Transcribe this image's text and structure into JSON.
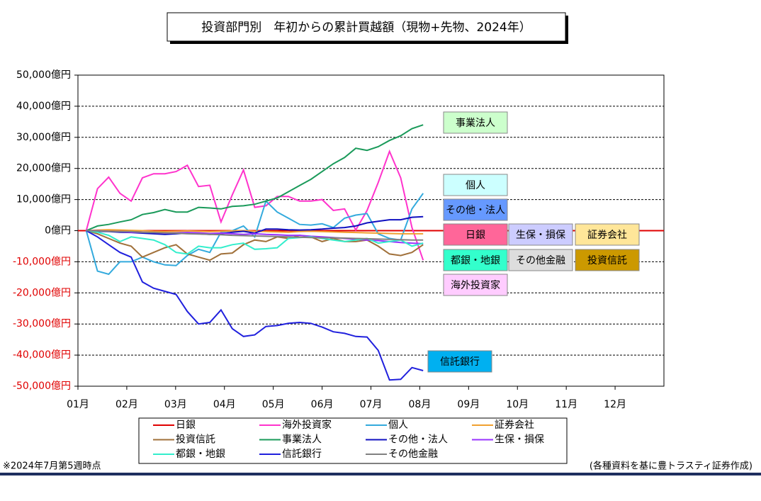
{
  "chart_data": {
    "type": "line",
    "title": "投資部門別　年初からの累計買越額（現物+先物、2024年）",
    "footnote": "※2024年7月第5週時点",
    "source": "(各種資料を基に豊トラスティ証券作成)",
    "x": [
      1.17,
      1.4,
      1.63,
      1.86,
      2.09,
      2.32,
      2.55,
      2.78,
      3.01,
      3.24,
      3.47,
      3.7,
      3.93,
      4.16,
      4.39,
      4.62,
      4.85,
      5.08,
      5.31,
      5.54,
      5.77,
      6,
      6.23,
      6.46,
      6.69,
      6.92,
      7.15,
      7.38,
      7.61,
      7.84,
      8.07
    ],
    "xlim": [
      1,
      13
    ],
    "xticks": [
      {
        "value": 1,
        "label": "01月"
      },
      {
        "value": 2,
        "label": "02月"
      },
      {
        "value": 3,
        "label": "03月"
      },
      {
        "value": 4,
        "label": "04月"
      },
      {
        "value": 5,
        "label": "05月"
      },
      {
        "value": 6,
        "label": "06月"
      },
      {
        "value": 7,
        "label": "07月"
      },
      {
        "value": 8,
        "label": "08月"
      },
      {
        "value": 9,
        "label": "09月"
      },
      {
        "value": 10,
        "label": "10月"
      },
      {
        "value": 11,
        "label": "11月"
      },
      {
        "value": 12,
        "label": "12月"
      }
    ],
    "ylim": [
      -50000,
      50000
    ],
    "yticks": [
      {
        "value": 50000,
        "label": "50,000億円"
      },
      {
        "value": 40000,
        "label": "40,000億円"
      },
      {
        "value": 30000,
        "label": "30,000億円"
      },
      {
        "value": 20000,
        "label": "20,000億円"
      },
      {
        "value": 10000,
        "label": "10,000億円"
      },
      {
        "value": 0,
        "label": "0億円"
      },
      {
        "value": -10000,
        "label": "-10,000億円"
      },
      {
        "value": -20000,
        "label": "-20,000億円"
      },
      {
        "value": -30000,
        "label": "-30,000億円"
      },
      {
        "value": -40000,
        "label": "-40,000億円"
      },
      {
        "value": -50000,
        "label": "-50,000億円"
      }
    ],
    "grid": true,
    "zero_line_color": "#e00000",
    "series": [
      {
        "name": "日銀",
        "color": "#e00000",
        "label_color": "#ff6699",
        "values": [
          0,
          0,
          0,
          0,
          0,
          0,
          0,
          0,
          0,
          0,
          0,
          0,
          0,
          0,
          0,
          0,
          0,
          0,
          0,
          0,
          0,
          0,
          0,
          0,
          0,
          0,
          0,
          0,
          0,
          0,
          0
        ]
      },
      {
        "name": "海外投資家",
        "color": "#ff33cc",
        "label_color": "#ffccff",
        "values": [
          0,
          13500,
          17200,
          12000,
          9500,
          17000,
          18300,
          18300,
          19000,
          21000,
          14200,
          14600,
          2800,
          11500,
          19500,
          7500,
          8000,
          11000,
          11000,
          9500,
          9500,
          10000,
          6500,
          7000,
          200,
          6500,
          15500,
          25500,
          17000,
          1000,
          -9500
        ]
      },
      {
        "name": "個人",
        "color": "#33aadd",
        "label_color": "#ccffff",
        "values": [
          0,
          -13000,
          -14000,
          -10000,
          -10000,
          -8500,
          -10000,
          -11000,
          -11200,
          -8000,
          -6000,
          -7000,
          -500,
          0,
          1500,
          -2000,
          9500,
          6000,
          4000,
          2000,
          1800,
          2200,
          1000,
          4000,
          5000,
          5500,
          -1000,
          -2500,
          -3000,
          7000,
          12000
        ]
      },
      {
        "name": "証券会社",
        "color": "#f0a030",
        "label_color": "#ffe699",
        "values": [
          0,
          200,
          300,
          200,
          100,
          0,
          -200,
          -300,
          -200,
          -100,
          -200,
          -300,
          -200,
          -100,
          0,
          -200,
          -300,
          -400,
          -500,
          -300,
          -200,
          -300,
          -400,
          -500,
          -600,
          -700,
          -800,
          -900,
          -1000,
          -1000,
          -1000
        ]
      },
      {
        "name": "投資信託",
        "color": "#a0703a",
        "label_color": "#cc9900",
        "values": [
          0,
          -1000,
          -2500,
          -4000,
          -5000,
          -8500,
          -7000,
          -5500,
          -4500,
          -7500,
          -8500,
          -9500,
          -7500,
          -7200,
          -4500,
          -3000,
          -3500,
          -2000,
          -2500,
          -1500,
          -2000,
          -3500,
          -2500,
          -3500,
          -3500,
          -3000,
          -5000,
          -7500,
          -8000,
          -7000,
          -4500
        ]
      },
      {
        "name": "事業法人",
        "color": "#1a9a5a",
        "label_color": "#ccffcc",
        "values": [
          0,
          1500,
          2000,
          2800,
          3500,
          5200,
          5800,
          6800,
          6000,
          6000,
          7500,
          7300,
          7000,
          7800,
          8000,
          8500,
          9500,
          10500,
          12500,
          14500,
          16500,
          19000,
          21500,
          23500,
          26500,
          25800,
          27000,
          29000,
          30500,
          32800,
          34000
        ]
      },
      {
        "name": "その他・法人",
        "color": "#1010c0",
        "label_color": "#6699ff",
        "values": [
          0,
          -200,
          -300,
          -500,
          -600,
          -800,
          -1000,
          -1200,
          -1000,
          -800,
          -1000,
          -1200,
          -1000,
          -500,
          -200,
          -800,
          500,
          500,
          300,
          200,
          300,
          500,
          800,
          1000,
          1500,
          2500,
          3000,
          3500,
          3500,
          4300,
          4500
        ]
      },
      {
        "name": "生保・損保",
        "color": "#9933ff",
        "label_color": "#ccccff",
        "values": [
          0,
          0,
          -200,
          -300,
          -500,
          -500,
          -600,
          -800,
          -700,
          -600,
          -700,
          -900,
          -800,
          -1000,
          -1200,
          -1000,
          -1200,
          -1300,
          -1500,
          -1500,
          -1800,
          -2000,
          -2200,
          -2500,
          -2800,
          -3000,
          -3200,
          -3500,
          -3800,
          -4000,
          -4200
        ]
      },
      {
        "name": "都銀・地銀",
        "color": "#33eecc",
        "label_color": "#33ffcc",
        "values": [
          0,
          -500,
          -1500,
          -3500,
          -2000,
          -2500,
          -3000,
          -4500,
          -7000,
          -7500,
          -5000,
          -5500,
          -5500,
          -4500,
          -4000,
          -6000,
          -5800,
          -5500,
          -2500,
          -2200,
          -2000,
          -2500,
          -3000,
          -3500,
          -3000,
          -2500,
          -4000,
          -3500,
          -3000,
          -5000,
          -4000
        ]
      },
      {
        "name": "信託銀行",
        "color": "#2020dd",
        "label_color": "#00b0f0",
        "values": [
          0,
          -2000,
          -4500,
          -7000,
          -8500,
          -16500,
          -18500,
          -19500,
          -20500,
          -26000,
          -30000,
          -29500,
          -25500,
          -31500,
          -34000,
          -33500,
          -30800,
          -30500,
          -29800,
          -29500,
          -29800,
          -31000,
          -32500,
          -33000,
          -34000,
          -34200,
          -38500,
          -48000,
          -47800,
          -44000,
          -45000
        ]
      },
      {
        "name": "その他金融",
        "color": "#808080",
        "label_color": "#dddddd",
        "values": [
          0,
          -100,
          -200,
          -300,
          -300,
          -500,
          -600,
          -700,
          -800,
          -1000,
          -1100,
          -1200,
          -1300,
          -1500,
          -1600,
          -1700,
          -1800,
          -1900,
          -2000,
          -2100,
          -2200,
          -2300,
          -2300,
          -2400,
          -2500,
          -2600,
          -2700,
          -2800,
          -2900,
          -3000,
          -3000
        ]
      }
    ]
  }
}
